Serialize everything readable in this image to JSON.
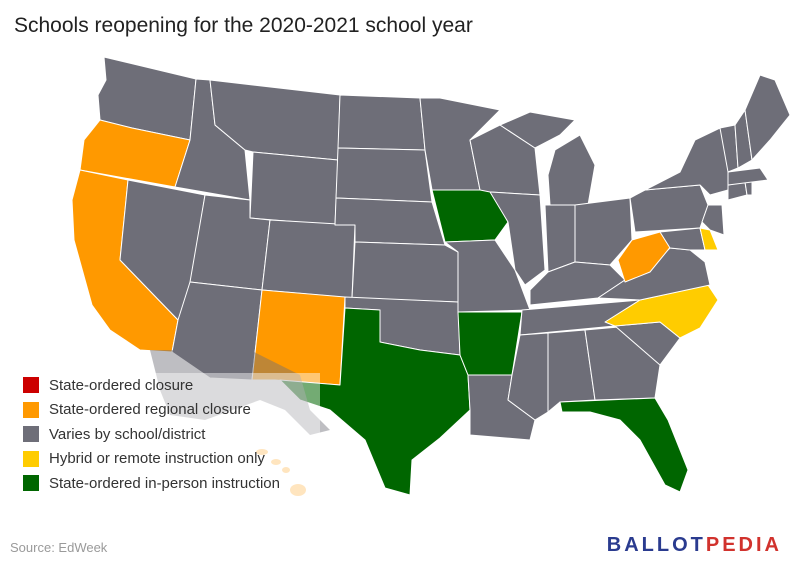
{
  "title": "Schools reopening for the 2020-2021 school year",
  "legend": [
    {
      "key": "closure",
      "label": "State-ordered closure",
      "color": "#cc0000"
    },
    {
      "key": "regional",
      "label": "State-ordered regional closure",
      "color": "#ff9900"
    },
    {
      "key": "varies",
      "label": "Varies by school/district",
      "color": "#6e6e78"
    },
    {
      "key": "hybrid",
      "label": "Hybrid or remote instruction only",
      "color": "#ffcc00"
    },
    {
      "key": "inperson",
      "label": "State-ordered in-person instruction",
      "color": "#006600"
    }
  ],
  "state_categories": {
    "Washington": "varies",
    "Oregon": "regional",
    "California": "regional",
    "Idaho": "varies",
    "Nevada": "varies",
    "Montana": "varies",
    "Wyoming": "varies",
    "Utah": "varies",
    "Arizona": "varies",
    "Colorado": "varies",
    "New Mexico": "regional",
    "North Dakota": "varies",
    "South Dakota": "varies",
    "Nebraska": "varies",
    "Kansas": "varies",
    "Oklahoma": "varies",
    "Texas": "inperson",
    "Minnesota": "varies",
    "Iowa": "inperson",
    "Missouri": "varies",
    "Arkansas": "inperson",
    "Louisiana": "varies",
    "Wisconsin": "varies",
    "Illinois": "varies",
    "Michigan": "varies",
    "Indiana": "varies",
    "Ohio": "varies",
    "Kentucky": "varies",
    "Tennessee": "varies",
    "Mississippi": "varies",
    "Alabama": "varies",
    "Georgia": "varies",
    "Florida": "inperson",
    "South Carolina": "varies",
    "North Carolina": "hybrid",
    "Virginia": "varies",
    "West Virginia": "regional",
    "Pennsylvania": "varies",
    "New York": "varies",
    "Maryland": "varies",
    "Delaware": "hybrid",
    "New Jersey": "varies",
    "Vermont": "varies",
    "New Hampshire": "varies",
    "Maine": "varies",
    "Massachusetts": "varies",
    "Connecticut": "varies",
    "Rhode Island": "varies",
    "Alaska": "varies",
    "Hawaii": "regional"
  },
  "source": "Source: EdWeek",
  "brand": {
    "part1": "BALLOT",
    "part2": "PEDIA"
  }
}
